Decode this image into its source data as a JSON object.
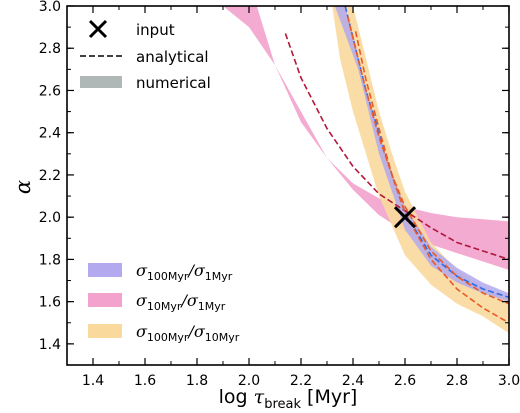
{
  "chart_data": {
    "type": "line",
    "xlabel": "log τ_break [Myr]",
    "ylabel": "α",
    "xlim": [
      1.3,
      3.0
    ],
    "ylim": [
      1.3,
      3.0
    ],
    "xticks": [
      "1.4",
      "1.6",
      "1.8",
      "2.0",
      "2.2",
      "2.4",
      "2.6",
      "2.8",
      "3.0"
    ],
    "yticks": [
      "1.4",
      "1.6",
      "1.8",
      "2.0",
      "2.2",
      "2.4",
      "2.6",
      "2.8",
      "3.0"
    ],
    "input_point": {
      "x": 2.6,
      "y": 2.0
    },
    "legend_top": [
      {
        "kind": "marker",
        "label": "input"
      },
      {
        "kind": "dashed",
        "label": "analytical"
      },
      {
        "kind": "band",
        "label": "numerical",
        "color": "#b0b7b7"
      }
    ],
    "series": [
      {
        "name_main": "σ",
        "name_sub1": "100Myr",
        "name_sep": "/σ",
        "name_sub2": "1Myr",
        "color": "#b2a9ee",
        "analytical_color": "#2d6ee5",
        "band_upper": [
          [
            2.37,
            3.0
          ],
          [
            2.45,
            2.6
          ],
          [
            2.55,
            2.2
          ],
          [
            2.6,
            2.05
          ],
          [
            2.7,
            1.86
          ],
          [
            2.8,
            1.76
          ],
          [
            2.9,
            1.69
          ],
          [
            3.0,
            1.64
          ]
        ],
        "band_lower": [
          [
            3.0,
            1.6
          ],
          [
            2.9,
            1.64
          ],
          [
            2.8,
            1.69
          ],
          [
            2.7,
            1.77
          ],
          [
            2.6,
            1.94
          ],
          [
            2.5,
            2.3
          ],
          [
            2.42,
            2.7
          ],
          [
            2.33,
            3.0
          ]
        ],
        "analytical": [
          [
            2.37,
            3.0
          ],
          [
            2.45,
            2.6
          ],
          [
            2.55,
            2.2
          ],
          [
            2.6,
            2.02
          ],
          [
            2.7,
            1.82
          ],
          [
            2.8,
            1.72
          ],
          [
            2.9,
            1.66
          ],
          [
            3.0,
            1.62
          ]
        ]
      },
      {
        "name_main": "σ",
        "name_sub1": "10Myr",
        "name_sep": "/σ",
        "name_sub2": "1Myr",
        "color": "#f2a2cd",
        "analytical_color": "#b2173a",
        "band_upper": [
          [
            2.03,
            3.0
          ],
          [
            2.1,
            2.72
          ],
          [
            2.2,
            2.45
          ],
          [
            2.3,
            2.28
          ],
          [
            2.4,
            2.16
          ],
          [
            2.5,
            2.09
          ],
          [
            2.6,
            2.05
          ],
          [
            2.7,
            2.02
          ],
          [
            2.8,
            2.0
          ],
          [
            2.9,
            1.99
          ],
          [
            3.0,
            1.98
          ]
        ],
        "band_lower": [
          [
            3.0,
            1.75
          ],
          [
            2.9,
            1.79
          ],
          [
            2.8,
            1.83
          ],
          [
            2.7,
            1.87
          ],
          [
            2.6,
            1.93
          ],
          [
            2.5,
            2.01
          ],
          [
            2.4,
            2.13
          ],
          [
            2.3,
            2.28
          ],
          [
            2.2,
            2.5
          ],
          [
            2.1,
            2.72
          ],
          [
            2.0,
            2.9
          ],
          [
            1.9,
            3.0
          ]
        ],
        "analytical": [
          [
            2.14,
            2.87
          ],
          [
            2.2,
            2.66
          ],
          [
            2.3,
            2.42
          ],
          [
            2.4,
            2.24
          ],
          [
            2.5,
            2.11
          ],
          [
            2.6,
            2.03
          ],
          [
            2.7,
            1.95
          ],
          [
            2.8,
            1.88
          ],
          [
            2.9,
            1.84
          ],
          [
            3.0,
            1.8
          ]
        ]
      },
      {
        "name_main": "σ",
        "name_sub1": "100Myr",
        "name_sep": "/σ",
        "name_sub2": "10Myr",
        "color": "#fad99c",
        "analytical_color": "#e85a2a",
        "band_upper": [
          [
            2.4,
            3.0
          ],
          [
            2.45,
            2.75
          ],
          [
            2.5,
            2.5
          ],
          [
            2.55,
            2.3
          ],
          [
            2.6,
            2.12
          ],
          [
            2.7,
            1.88
          ],
          [
            2.8,
            1.75
          ],
          [
            2.9,
            1.67
          ],
          [
            3.0,
            1.61
          ]
        ],
        "band_lower": [
          [
            3.0,
            1.45
          ],
          [
            2.9,
            1.53
          ],
          [
            2.8,
            1.59
          ],
          [
            2.7,
            1.68
          ],
          [
            2.6,
            1.82
          ],
          [
            2.55,
            1.96
          ],
          [
            2.5,
            2.1
          ],
          [
            2.45,
            2.3
          ],
          [
            2.4,
            2.5
          ],
          [
            2.35,
            2.75
          ],
          [
            2.32,
            3.0
          ]
        ],
        "analytical": [
          [
            2.41,
            2.88
          ],
          [
            2.45,
            2.65
          ],
          [
            2.5,
            2.42
          ],
          [
            2.55,
            2.2
          ],
          [
            2.6,
            2.02
          ],
          [
            2.7,
            1.8
          ],
          [
            2.8,
            1.66
          ],
          [
            2.9,
            1.57
          ],
          [
            3.0,
            1.5
          ]
        ],
        "analytical2": [
          [
            2.38,
            2.95
          ],
          [
            2.45,
            2.6
          ],
          [
            2.5,
            2.38
          ],
          [
            2.55,
            2.2
          ],
          [
            2.6,
            2.05
          ],
          [
            2.7,
            1.84
          ],
          [
            2.8,
            1.72
          ],
          [
            2.9,
            1.64
          ],
          [
            3.0,
            1.59
          ]
        ]
      }
    ]
  }
}
